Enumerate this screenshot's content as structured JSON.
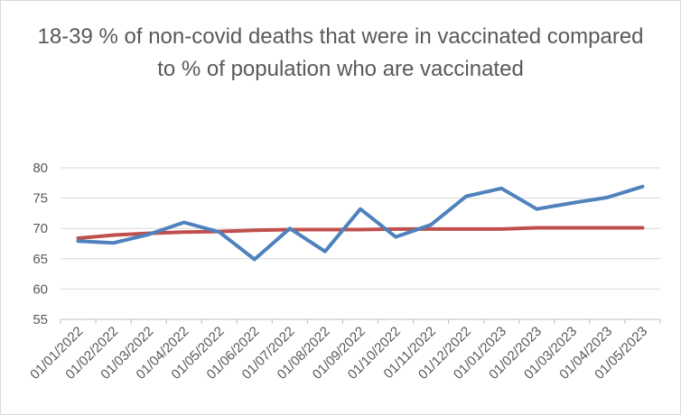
{
  "chart_data": {
    "type": "line",
    "title": "18-39 % of non-covid deaths that were in vaccinated compared to % of population who are vaccinated",
    "xlabel": "",
    "ylabel": "",
    "categories": [
      "01/01/2022",
      "01/02/2022",
      "01/03/2022",
      "01/04/2022",
      "01/05/2022",
      "01/06/2022",
      "01/07/2022",
      "01/08/2022",
      "01/09/2022",
      "01/10/2022",
      "01/11/2022",
      "01/12/2022",
      "01/01/2023",
      "01/02/2023",
      "01/03/2023",
      "01/04/2023",
      "01/05/2023"
    ],
    "series": [
      {
        "color": "#4f81bd",
        "values": [
          67.9,
          67.6,
          69.0,
          71.0,
          69.4,
          64.9,
          70.0,
          66.2,
          73.2,
          68.6,
          70.6,
          75.3,
          76.6,
          73.2,
          74.2,
          75.1,
          76.9
        ]
      },
      {
        "color": "#c0504d",
        "values": [
          68.4,
          68.9,
          69.2,
          69.4,
          69.5,
          69.7,
          69.8,
          69.8,
          69.8,
          69.9,
          69.9,
          69.9,
          69.9,
          70.1,
          70.1,
          70.1,
          70.1
        ]
      }
    ],
    "ylim": [
      55,
      80
    ],
    "yticks": [
      55,
      60,
      65,
      70,
      75,
      80
    ],
    "grid": true,
    "legend": "none"
  }
}
